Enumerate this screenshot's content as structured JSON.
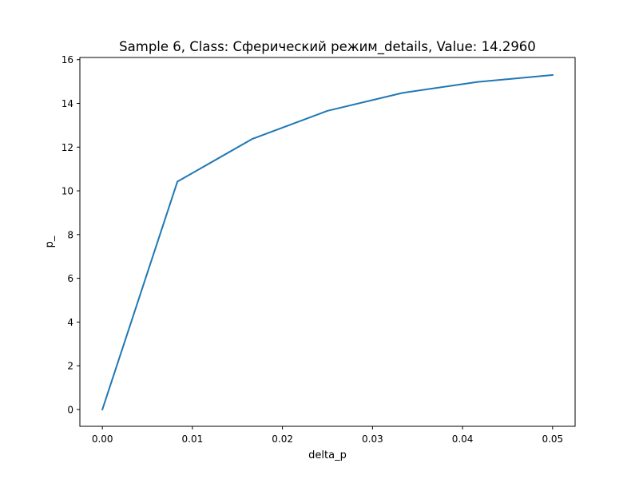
{
  "chart_data": {
    "type": "line",
    "title": "Sample 6, Class: Сферический режим_details, Value: 14.2960",
    "xlabel": "delta_p",
    "ylabel": "p_",
    "xlim": [
      -0.0025,
      0.0525
    ],
    "ylim": [
      -0.77,
      16.1
    ],
    "xticks": [
      0.0,
      0.01,
      0.02,
      0.03,
      0.04,
      0.05
    ],
    "xtick_labels": [
      "0.00",
      "0.01",
      "0.02",
      "0.03",
      "0.04",
      "0.05"
    ],
    "yticks": [
      0,
      2,
      4,
      6,
      8,
      10,
      12,
      14,
      16
    ],
    "ytick_labels": [
      "0",
      "2",
      "4",
      "6",
      "8",
      "10",
      "12",
      "14",
      "16"
    ],
    "grid": false,
    "series": [
      {
        "color": "#1f77b4",
        "x": [
          0.0,
          0.00833,
          0.01667,
          0.025,
          0.03333,
          0.04167,
          0.05
        ],
        "y": [
          0.0,
          10.42,
          12.38,
          13.66,
          14.48,
          14.98,
          15.3
        ]
      }
    ]
  }
}
